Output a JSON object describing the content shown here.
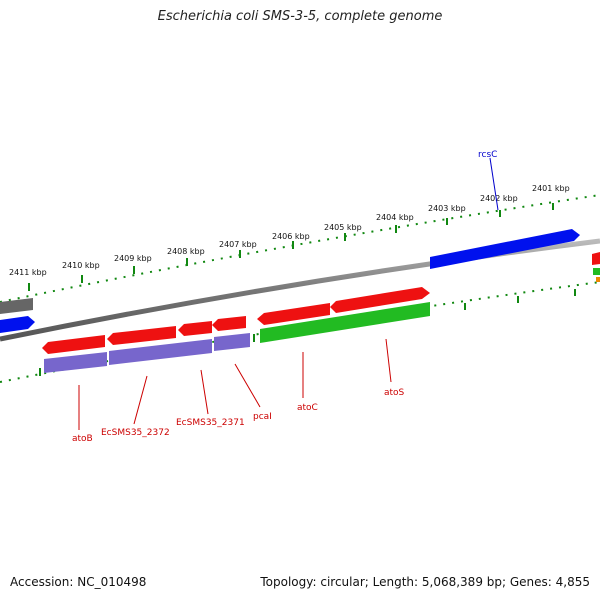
{
  "title": "Escherichia coli SMS-3-5, complete genome",
  "footer": {
    "accession": "Accession: NC_010498",
    "summary": "Topology: circular; Length: 5,068,389 bp; Genes: 4,855"
  },
  "colors": {
    "backbone": "#808080",
    "forward_cds": "#ee1111",
    "reverse_cds": "#7766cc",
    "other_cds": "#22bb22",
    "highlight_cds": "#0011ee",
    "tick": "#118811",
    "label_red": "#cc0000",
    "label_blue": "#0000cc"
  },
  "ticks": [
    {
      "label": "2401 kbp"
    },
    {
      "label": "2402 kbp"
    },
    {
      "label": "2403 kbp"
    },
    {
      "label": "2404 kbp"
    },
    {
      "label": "2405 kbp"
    },
    {
      "label": "2406 kbp"
    },
    {
      "label": "2407 kbp"
    },
    {
      "label": "2408 kbp"
    },
    {
      "label": "2409 kbp"
    },
    {
      "label": "2410 kbp"
    },
    {
      "label": "2411 kbp"
    }
  ],
  "genes": [
    {
      "name": "rcsC",
      "color": "blue"
    },
    {
      "name": "atoB",
      "color": "red"
    },
    {
      "name": "EcSMS35_2372",
      "color": "red"
    },
    {
      "name": "EcSMS35_2371",
      "color": "red"
    },
    {
      "name": "pcaI",
      "color": "red"
    },
    {
      "name": "atoC",
      "color": "red"
    },
    {
      "name": "atoS",
      "color": "red"
    }
  ]
}
